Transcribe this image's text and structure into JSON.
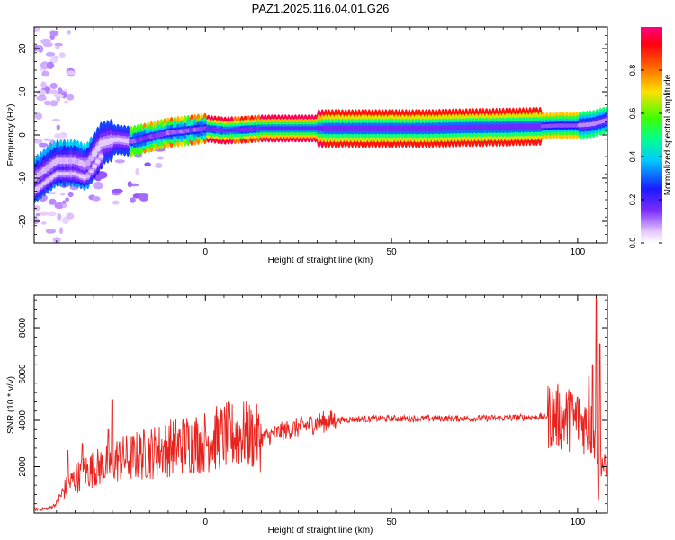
{
  "figure_title": "PAZ1.2025.116.04.01.G26",
  "chart_data": [
    {
      "type": "heatmap",
      "xlabel": "Height of straight line (km)",
      "ylabel": "Frequency (Hz)",
      "xlim": [
        -46,
        108
      ],
      "ylim": [
        -25,
        25
      ],
      "xticks": [
        0,
        50,
        100
      ],
      "yticks": [
        20,
        10,
        0,
        -10,
        -20
      ],
      "colorbar": {
        "label": "Normalized spectral amplitude",
        "range": [
          0,
          1
        ],
        "ticks": [
          "0.0",
          "0.2",
          "0.4",
          "0.6",
          "0.8"
        ],
        "colormap": [
          "#f0dcff",
          "#7b2cff",
          "#1a1aff",
          "#00c8ff",
          "#00ff80",
          "#80ff00",
          "#ffd000",
          "#ff6000",
          "#ff0000",
          "#ff0060"
        ]
      },
      "ridge_frequency": {
        "x": [
          -46,
          -40,
          -35,
          -32,
          -28,
          -24,
          -20,
          -15,
          -10,
          -5,
          0,
          5,
          10,
          15,
          20,
          30,
          40,
          50,
          60,
          70,
          80,
          90,
          95,
          100,
          104,
          108
        ],
        "y": [
          -10,
          -6,
          -6,
          -7,
          -2,
          -1,
          -1.5,
          -0.5,
          0.5,
          1,
          1.5,
          1,
          1.2,
          1.5,
          1.5,
          1.5,
          1.5,
          1.5,
          1.5,
          1.7,
          1.8,
          2,
          2.2,
          2.2,
          2.5,
          3.5
        ]
      }
    },
    {
      "type": "line",
      "xlabel": "Height of straight line (km)",
      "ylabel": "SNR (10 * v/v)",
      "xlim": [
        -46,
        108
      ],
      "ylim": [
        0,
        9400
      ],
      "xticks": [
        0,
        50,
        100
      ],
      "yticks": [
        2000,
        4000,
        6000,
        8000
      ],
      "color": "#e8231e",
      "envelope_x": [
        -46,
        -42,
        -40,
        -38,
        -35,
        -32,
        -28,
        -26,
        -24,
        -20,
        -15,
        -10,
        -5,
        0,
        5,
        10,
        15,
        20,
        25,
        30,
        35,
        40,
        50,
        60,
        70,
        80,
        90,
        93,
        96,
        99,
        101,
        103,
        104,
        105,
        106,
        107,
        108
      ],
      "envelope_y": [
        150,
        200,
        400,
        1000,
        1500,
        1800,
        2000,
        2100,
        2300,
        2400,
        2600,
        2800,
        3000,
        3100,
        3300,
        3400,
        3200,
        3500,
        3700,
        3900,
        4000,
        4050,
        4080,
        4080,
        4080,
        4100,
        4150,
        4200,
        4100,
        4000,
        3900,
        3800,
        3500,
        3000,
        2500,
        2000,
        1700
      ],
      "spikes": [
        {
          "x": -25,
          "y": 4900
        },
        {
          "x": -26,
          "y": 3600
        },
        {
          "x": -33,
          "y": 3000
        },
        {
          "x": -37,
          "y": 2700
        },
        {
          "x": 105,
          "y": 9300
        },
        {
          "x": 106,
          "y": 7300
        },
        {
          "x": 104,
          "y": 6400
        },
        {
          "x": 103,
          "y": 5900
        },
        {
          "x": 100,
          "y": 5000
        },
        {
          "x": 98,
          "y": 5200
        },
        {
          "x": 105.5,
          "y": 600
        }
      ]
    }
  ]
}
